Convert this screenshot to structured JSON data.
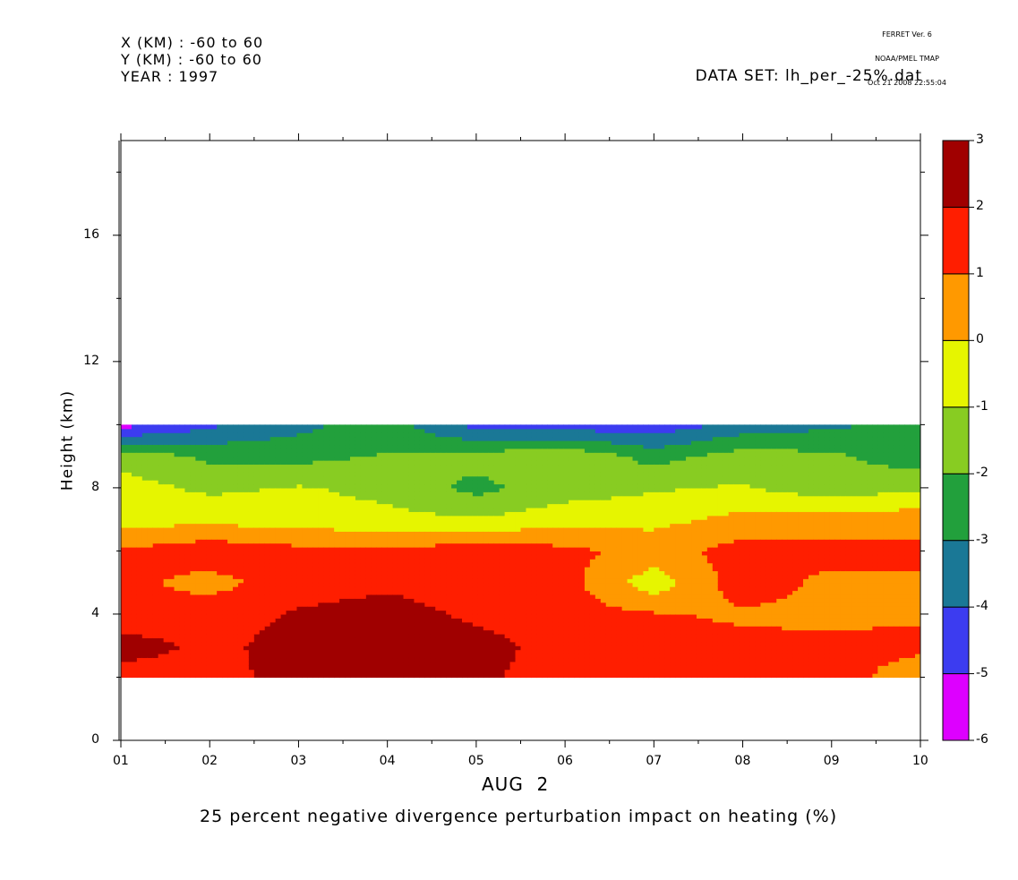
{
  "header": {
    "x_range": "X (KM) : -60 to 60",
    "y_range": "Y (KM) : -60 to 60",
    "year": "YEAR : 1997",
    "dataset": "DATA SET: lh_per_-25%.dat",
    "stamp_line1": "FERRET Ver. 6",
    "stamp_line2": "NOAA/PMEL TMAP",
    "stamp_line3": "Oct 21 2008 22:55:04"
  },
  "chart_data": {
    "type": "heatmap",
    "title": "25 percent negative divergence perturbation impact on heating (%)",
    "xlabel": "AUG  2",
    "ylabel": "Height (km)",
    "x_ticks": [
      "01",
      "02",
      "03",
      "04",
      "05",
      "06",
      "07",
      "08",
      "09",
      "10"
    ],
    "y_ticks": [
      "0",
      "4",
      "8",
      "12",
      "16"
    ],
    "xlim": [
      1,
      10
    ],
    "ylim": [
      0,
      19
    ],
    "data_height_range": [
      2,
      10
    ],
    "colorbar": {
      "levels": [
        -6,
        -5,
        -4,
        -3,
        -2,
        -1,
        0,
        1,
        2,
        3
      ],
      "labels": [
        "-6",
        "-5",
        "-4",
        "-3",
        "-2",
        "-1",
        "0",
        "1",
        "2",
        "3"
      ],
      "colors": [
        "#dd00ff",
        "#3c3cf0",
        "#1a7896",
        "#22a03c",
        "#88cc22",
        "#e6f500",
        "#ff9900",
        "#ff1e00",
        "#a00000"
      ]
    },
    "x": [
      1,
      2,
      3,
      4,
      5,
      6,
      7,
      8,
      9,
      10
    ],
    "y": [
      2,
      3,
      4,
      5,
      6,
      7,
      8,
      9,
      10
    ],
    "z": [
      [
        1.6,
        1.8,
        2.2,
        2.3,
        2.2,
        1.5,
        1.3,
        1.5,
        1.4,
        0.5
      ],
      [
        2.4,
        1.8,
        2.3,
        2.6,
        2.4,
        1.6,
        1.8,
        1.3,
        1.2,
        1.2
      ],
      [
        1.4,
        1.6,
        2.1,
        2.4,
        1.8,
        1.4,
        1.1,
        0.8,
        0.8,
        0.9
      ],
      [
        1.3,
        0.6,
        1.6,
        1.8,
        1.6,
        1.4,
        -0.6,
        1.6,
        0.7,
        0.8
      ],
      [
        1.1,
        1.7,
        1.3,
        1.2,
        1.6,
        1.3,
        0.6,
        1.4,
        1.4,
        1.3
      ],
      [
        -0.4,
        -0.3,
        -0.5,
        -0.7,
        -0.9,
        -0.4,
        -0.3,
        0.3,
        0.4,
        0.6
      ],
      [
        -0.6,
        -1.2,
        -0.9,
        -1.3,
        -2.3,
        -1.5,
        -1.1,
        -0.9,
        -1.6,
        -1.1
      ],
      [
        -1.3,
        -2.2,
        -2.3,
        -1.9,
        -1.6,
        -1.1,
        -2.4,
        -1.5,
        -1.8,
        -2.6
      ],
      [
        -5.4,
        -4.2,
        -3.3,
        -2.5,
        -4.4,
        -4.5,
        -4.7,
        -3.6,
        -3.2,
        -2.6
      ]
    ]
  }
}
